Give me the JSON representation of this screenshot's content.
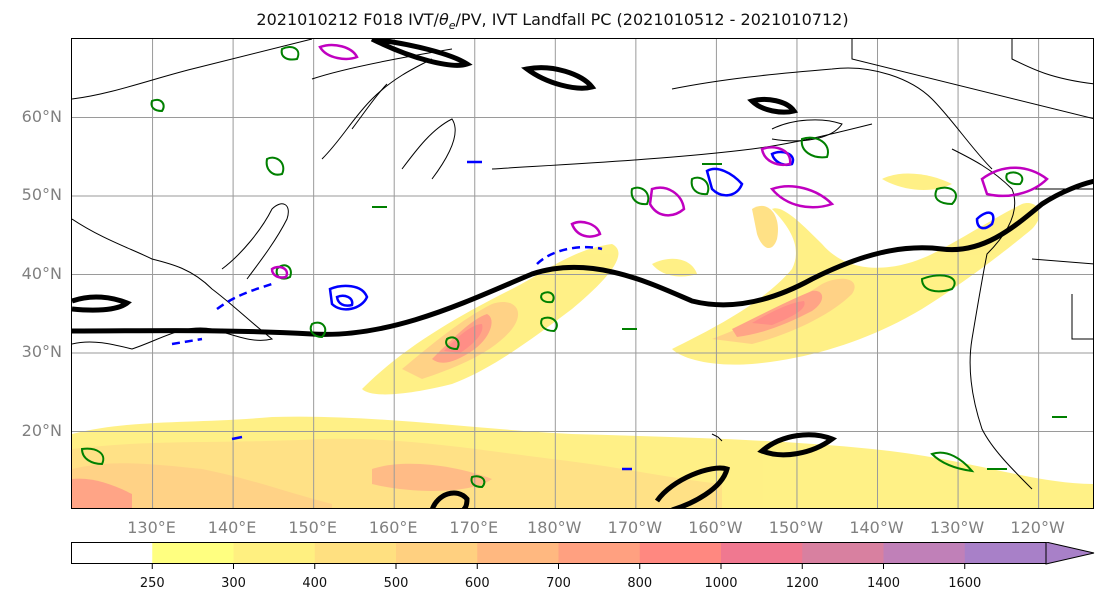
{
  "title": {
    "prefix": "2021010212 F018 IVT/",
    "theta_symbol": "θ",
    "theta_subscript": "e",
    "suffix": "/PV, IVT Landfall PC (2021010512 - 2021010712)"
  },
  "map": {
    "lat_labels": [
      "60°N",
      "50°N",
      "40°N",
      "30°N",
      "20°N"
    ],
    "lon_labels": [
      "130°E",
      "140°E",
      "150°E",
      "160°E",
      "170°E",
      "180°W",
      "170°W",
      "160°W",
      "150°W",
      "140°W",
      "130°W",
      "120°W"
    ],
    "lat_values": [
      60,
      50,
      40,
      30,
      20
    ],
    "lon_values": [
      130,
      140,
      150,
      160,
      170,
      180,
      190,
      200,
      210,
      220,
      230,
      240
    ],
    "extent": {
      "lon_min": 120,
      "lon_max": 247,
      "lat_min": 10,
      "lat_max": 70
    },
    "contour_colors": {
      "ivt_line": "#000000",
      "pv": "#008000",
      "theta_e_solid": "#0000ff",
      "magenta": "#c000c0"
    }
  },
  "colorbar": {
    "tick_labels": [
      "250",
      "300",
      "400",
      "500",
      "600",
      "700",
      "800",
      "1000",
      "1200",
      "1400",
      "1600"
    ],
    "bins": [
      {
        "color": "#ffffff"
      },
      {
        "color": "#ffff80"
      },
      {
        "color": "#fff080"
      },
      {
        "color": "#ffe080"
      },
      {
        "color": "#ffd080"
      },
      {
        "color": "#ffb880"
      },
      {
        "color": "#ffa080"
      },
      {
        "color": "#ff8880"
      },
      {
        "color": "#f07890"
      },
      {
        "color": "#d880a0"
      },
      {
        "color": "#c080b8"
      },
      {
        "color": "#a880c8"
      }
    ]
  }
}
